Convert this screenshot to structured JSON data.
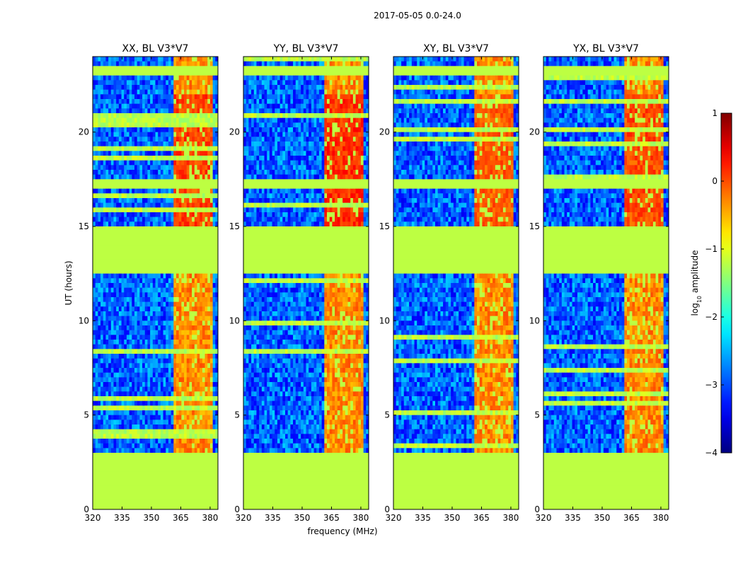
{
  "chart_data": {
    "type": "heatmap",
    "suptitle": "2017-05-05 0.0-24.0",
    "panels": [
      {
        "title": "XX, BL V3*V7"
      },
      {
        "title": "YY, BL V3*V7"
      },
      {
        "title": "XY, BL V3*V7"
      },
      {
        "title": "YX, BL V3*V7"
      }
    ],
    "xlabel": "frequency (MHz)",
    "ylabel": "UT (hours)",
    "xlim": [
      320,
      384
    ],
    "ylim": [
      0,
      24
    ],
    "xticks": [
      320,
      335,
      350,
      365,
      380
    ],
    "yticks": [
      0,
      5,
      10,
      15,
      20
    ],
    "colorbar": {
      "label_prefix": "log",
      "label_sub": "10",
      "label_suffix": " amplitude",
      "range": [
        -4,
        1
      ],
      "ticks": [
        "1",
        "0",
        "−1",
        "−2",
        "−3",
        "−4"
      ],
      "tick_values": [
        1,
        0,
        -1,
        -2,
        -3,
        -4
      ],
      "colormap": "jet"
    },
    "flagged_value": -1.2,
    "flagged_time_ranges": [
      [
        0,
        3.1
      ],
      [
        12.6,
        15.0
      ],
      [
        17.05,
        17.5
      ],
      [
        23.1,
        23.5
      ]
    ],
    "rfi_band_mhz": [
      361,
      381
    ],
    "rfi_band_level": -0.3,
    "background_level": -2.9,
    "series": [
      {
        "name": "XX",
        "band_peak": 0.3
      },
      {
        "name": "YY",
        "band_peak": 0.4
      },
      {
        "name": "XY",
        "band_peak": 0.15
      },
      {
        "name": "YX",
        "band_peak": 0.25
      }
    ]
  }
}
